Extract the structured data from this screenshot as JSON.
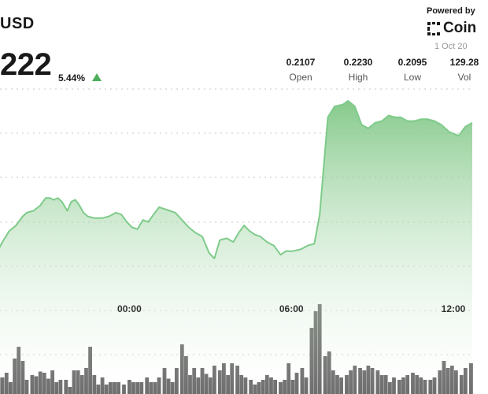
{
  "header": {
    "pair": "USD",
    "price": "222",
    "change": "5.44%",
    "powered_by": "Powered by",
    "brand": "Coin",
    "date": "1 Oct 20",
    "stats": [
      {
        "value": "0.2107",
        "label": "Open"
      },
      {
        "value": "0.2230",
        "label": "High"
      },
      {
        "value": "0.2095",
        "label": "Low"
      },
      {
        "value": "129.28",
        "label": "Vol"
      }
    ]
  },
  "colors": {
    "line": "#7ecb8a",
    "area_top": "#79c47f",
    "area_bottom": "#ffffff",
    "bars": "#555555",
    "gridline": "#c7c7c7",
    "up_arrow": "#4caf5b"
  },
  "chart_data": {
    "type": "area",
    "x_tick_labels": [
      "00:00",
      "06:00",
      "12:00"
    ],
    "x_ticks_hours": [
      0,
      6,
      12
    ],
    "x_range_hours": [
      -4.85,
      12.7
    ],
    "grid": "horizontal dashed",
    "price_series": [
      [
        -4.85,
        0.212
      ],
      [
        -4.7,
        0.2124
      ],
      [
        -4.45,
        0.213
      ],
      [
        -4.2,
        0.2133
      ],
      [
        -3.95,
        0.2138
      ],
      [
        -3.8,
        0.214
      ],
      [
        -3.55,
        0.2141
      ],
      [
        -3.3,
        0.2144
      ],
      [
        -3.1,
        0.2148
      ],
      [
        -2.95,
        0.2148
      ],
      [
        -2.8,
        0.2147
      ],
      [
        -2.65,
        0.2148
      ],
      [
        -2.5,
        0.2146
      ],
      [
        -2.3,
        0.2141
      ],
      [
        -2.15,
        0.2146
      ],
      [
        -2.0,
        0.2147
      ],
      [
        -1.85,
        0.2144
      ],
      [
        -1.7,
        0.214
      ],
      [
        -1.55,
        0.2138
      ],
      [
        -1.3,
        0.2137
      ],
      [
        -1.0,
        0.2137
      ],
      [
        -0.75,
        0.2138
      ],
      [
        -0.5,
        0.214
      ],
      [
        -0.3,
        0.2139
      ],
      [
        -0.1,
        0.2135
      ],
      [
        0.1,
        0.2132
      ],
      [
        0.3,
        0.2131
      ],
      [
        0.5,
        0.2136
      ],
      [
        0.7,
        0.2135
      ],
      [
        0.9,
        0.2139
      ],
      [
        1.1,
        0.2143
      ],
      [
        1.3,
        0.2142
      ],
      [
        1.5,
        0.2141
      ],
      [
        1.7,
        0.214
      ],
      [
        1.95,
        0.2136
      ],
      [
        2.2,
        0.2132
      ],
      [
        2.45,
        0.2129
      ],
      [
        2.7,
        0.2127
      ],
      [
        2.95,
        0.2118
      ],
      [
        3.15,
        0.2115
      ],
      [
        3.35,
        0.2125
      ],
      [
        3.6,
        0.2126
      ],
      [
        3.85,
        0.2124
      ],
      [
        4.05,
        0.2129
      ],
      [
        4.25,
        0.2133
      ],
      [
        4.45,
        0.213
      ],
      [
        4.65,
        0.2128
      ],
      [
        4.85,
        0.2127
      ],
      [
        5.1,
        0.2124
      ],
      [
        5.35,
        0.2122
      ],
      [
        5.6,
        0.2117
      ],
      [
        5.8,
        0.2119
      ],
      [
        6.05,
        0.2119
      ],
      [
        6.35,
        0.212
      ],
      [
        6.6,
        0.2122
      ],
      [
        6.85,
        0.2123
      ],
      [
        7.05,
        0.2139
      ],
      [
        7.35,
        0.2192
      ],
      [
        7.6,
        0.2198
      ],
      [
        7.9,
        0.2199
      ],
      [
        8.1,
        0.2201
      ],
      [
        8.35,
        0.2198
      ],
      [
        8.6,
        0.2188
      ],
      [
        8.85,
        0.2186
      ],
      [
        9.1,
        0.2189
      ],
      [
        9.35,
        0.219
      ],
      [
        9.6,
        0.2193
      ],
      [
        9.85,
        0.2192
      ],
      [
        10.05,
        0.2192
      ],
      [
        10.3,
        0.219
      ],
      [
        10.55,
        0.219
      ],
      [
        10.8,
        0.2191
      ],
      [
        11.05,
        0.2191
      ],
      [
        11.3,
        0.219
      ],
      [
        11.55,
        0.2188
      ],
      [
        11.85,
        0.2184
      ],
      [
        12.2,
        0.2182
      ],
      [
        12.45,
        0.2187
      ],
      [
        12.7,
        0.2189
      ]
    ],
    "volume_series": [
      [
        -4.85,
        14
      ],
      [
        -4.7,
        14
      ],
      [
        -4.55,
        18
      ],
      [
        -4.4,
        10
      ],
      [
        -4.25,
        30
      ],
      [
        -4.1,
        40
      ],
      [
        -3.95,
        28
      ],
      [
        -3.8,
        12
      ],
      [
        -3.6,
        16
      ],
      [
        -3.45,
        15
      ],
      [
        -3.3,
        19
      ],
      [
        -3.15,
        18
      ],
      [
        -3.0,
        13
      ],
      [
        -2.85,
        20
      ],
      [
        -2.7,
        10
      ],
      [
        -2.55,
        12
      ],
      [
        -2.35,
        12
      ],
      [
        -2.2,
        6
      ],
      [
        -2.05,
        20
      ],
      [
        -1.9,
        20
      ],
      [
        -1.75,
        16
      ],
      [
        -1.6,
        22
      ],
      [
        -1.45,
        40
      ],
      [
        -1.3,
        16
      ],
      [
        -1.15,
        8
      ],
      [
        -1.0,
        14
      ],
      [
        -0.85,
        8
      ],
      [
        -0.7,
        10
      ],
      [
        -0.55,
        10
      ],
      [
        -0.4,
        10
      ],
      [
        -0.2,
        8
      ],
      [
        0.0,
        12
      ],
      [
        0.15,
        10
      ],
      [
        0.3,
        10
      ],
      [
        0.45,
        10
      ],
      [
        0.65,
        14
      ],
      [
        0.8,
        10
      ],
      [
        0.95,
        10
      ],
      [
        1.1,
        14
      ],
      [
        1.3,
        22
      ],
      [
        1.45,
        13
      ],
      [
        1.6,
        10
      ],
      [
        1.75,
        22
      ],
      [
        1.95,
        42
      ],
      [
        2.1,
        32
      ],
      [
        2.25,
        16
      ],
      [
        2.4,
        22
      ],
      [
        2.55,
        14
      ],
      [
        2.7,
        22
      ],
      [
        2.85,
        17
      ],
      [
        3.0,
        14
      ],
      [
        3.15,
        24
      ],
      [
        3.35,
        20
      ],
      [
        3.5,
        26
      ],
      [
        3.65,
        16
      ],
      [
        3.8,
        26
      ],
      [
        4.0,
        24
      ],
      [
        4.15,
        16
      ],
      [
        4.3,
        14
      ],
      [
        4.5,
        12
      ],
      [
        4.65,
        8
      ],
      [
        4.8,
        10
      ],
      [
        4.95,
        12
      ],
      [
        5.1,
        16
      ],
      [
        5.25,
        14
      ],
      [
        5.4,
        12
      ],
      [
        5.6,
        10
      ],
      [
        5.75,
        12
      ],
      [
        5.9,
        26
      ],
      [
        6.05,
        12
      ],
      [
        6.2,
        18
      ],
      [
        6.4,
        22
      ],
      [
        6.55,
        14
      ],
      [
        6.75,
        56
      ],
      [
        6.9,
        70
      ],
      [
        7.05,
        76
      ],
      [
        7.25,
        32
      ],
      [
        7.4,
        36
      ],
      [
        7.55,
        20
      ],
      [
        7.7,
        16
      ],
      [
        7.85,
        14
      ],
      [
        8.05,
        16
      ],
      [
        8.2,
        20
      ],
      [
        8.35,
        24
      ],
      [
        8.55,
        22
      ],
      [
        8.7,
        20
      ],
      [
        8.85,
        24
      ],
      [
        9.0,
        22
      ],
      [
        9.2,
        20
      ],
      [
        9.35,
        16
      ],
      [
        9.5,
        16
      ],
      [
        9.65,
        10
      ],
      [
        9.8,
        14
      ],
      [
        10.0,
        12
      ],
      [
        10.15,
        14
      ],
      [
        10.3,
        16
      ],
      [
        10.5,
        18
      ],
      [
        10.65,
        16
      ],
      [
        10.8,
        14
      ],
      [
        10.95,
        12
      ],
      [
        11.15,
        12
      ],
      [
        11.3,
        14
      ],
      [
        11.5,
        20
      ],
      [
        11.65,
        28
      ],
      [
        11.8,
        22
      ],
      [
        11.95,
        24
      ],
      [
        12.1,
        20
      ],
      [
        12.3,
        16
      ],
      [
        12.45,
        22
      ],
      [
        12.65,
        26
      ]
    ]
  }
}
